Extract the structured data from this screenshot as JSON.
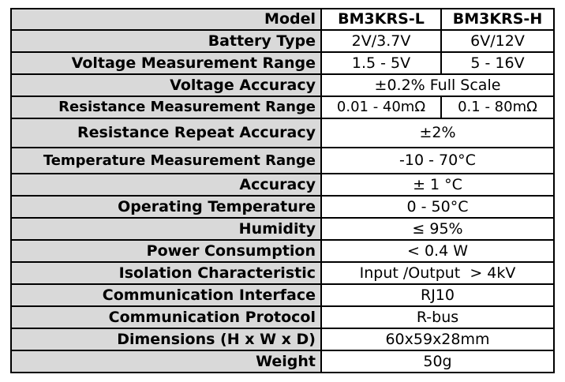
{
  "header": {
    "label": "Model",
    "models": [
      "BM3KRS-L",
      "BM3KRS-H"
    ]
  },
  "rows": [
    {
      "label": "Battery Type",
      "values": [
        "2V/3.7V",
        "6V/12V"
      ]
    },
    {
      "label": "Voltage Measurement Range",
      "values": [
        "1.5 - 5V",
        "5 - 16V"
      ]
    },
    {
      "label": "Voltage Accuracy",
      "value": "±0.2% Full Scale"
    },
    {
      "label": "Resistance Measurement Range",
      "values": [
        "0.01 - 40mΩ",
        "0.1 - 80mΩ"
      ]
    },
    {
      "label": "Resistance Repeat Accuracy",
      "value": "±2%"
    },
    {
      "label": "Temperature Measurement Range",
      "value": "-10 - 70°C"
    },
    {
      "label": "Accuracy",
      "value": "± 1 °C"
    },
    {
      "label": "Operating Temperature",
      "value": "0 - 50°C"
    },
    {
      "label": "Humidity",
      "value": "≤ 95%"
    },
    {
      "label": "Power Consumption",
      "value": "< 0.4 W"
    },
    {
      "label": "Isolation Characteristic",
      "value": "Input /Output  > 4kV"
    },
    {
      "label": "Communication Interface",
      "value": "RJ10"
    },
    {
      "label": "Communication Protocol",
      "value": "R-bus"
    },
    {
      "label": "Dimensions (H x W x D)",
      "value": "60x59x28mm"
    },
    {
      "label": "Weight",
      "value": "50g"
    }
  ]
}
